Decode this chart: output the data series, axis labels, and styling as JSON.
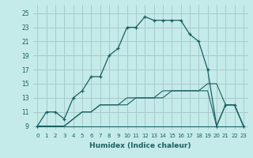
{
  "xlabel": "Humidex (Indice chaleur)",
  "bg_color": "#c5eaea",
  "grid_color": "#a8cccc",
  "line_color": "#1a6060",
  "xlim": [
    -0.5,
    23.5
  ],
  "ylim": [
    8.5,
    26.2
  ],
  "xticks": [
    0,
    1,
    2,
    3,
    4,
    5,
    6,
    7,
    8,
    9,
    10,
    11,
    12,
    13,
    14,
    15,
    16,
    17,
    18,
    19,
    20,
    21,
    22,
    23
  ],
  "yticks": [
    9,
    11,
    13,
    15,
    17,
    19,
    21,
    23,
    25
  ],
  "line1_x": [
    0,
    1,
    2,
    3,
    4,
    5,
    6,
    7,
    8,
    9,
    10,
    11,
    12,
    13,
    14,
    15,
    16,
    17,
    18,
    19,
    20,
    21,
    22,
    23
  ],
  "line1_y": [
    9,
    11,
    11,
    10,
    13,
    14,
    16,
    16,
    19,
    20,
    23,
    23,
    24.5,
    24,
    24,
    24,
    24,
    22,
    21,
    17,
    9,
    12,
    12,
    9
  ],
  "line2_x": [
    0,
    1,
    2,
    3,
    4,
    5,
    6,
    7,
    8,
    9,
    10,
    14,
    20,
    23
  ],
  "line2_y": [
    9,
    9,
    9,
    9,
    9,
    9,
    9,
    9,
    9,
    9,
    9,
    9,
    9,
    9
  ],
  "line3_x": [
    0,
    1,
    2,
    3,
    4,
    5,
    6,
    7,
    8,
    9,
    10,
    11,
    12,
    13,
    14,
    15,
    16,
    17,
    18,
    19,
    20,
    21,
    22,
    23
  ],
  "line3_y": [
    9,
    9,
    9,
    9,
    10,
    11,
    11,
    12,
    12,
    12,
    13,
    13,
    13,
    13,
    14,
    14,
    14,
    14,
    14,
    15,
    15,
    12,
    12,
    9
  ],
  "line4_x": [
    0,
    1,
    2,
    3,
    4,
    5,
    6,
    7,
    8,
    9,
    10,
    11,
    12,
    13,
    14,
    15,
    16,
    17,
    18,
    19,
    20,
    21,
    22,
    23
  ],
  "line4_y": [
    9,
    9,
    9,
    9,
    10,
    11,
    11,
    12,
    12,
    12,
    12,
    13,
    13,
    13,
    13,
    14,
    14,
    14,
    14,
    14,
    9,
    12,
    12,
    9
  ]
}
